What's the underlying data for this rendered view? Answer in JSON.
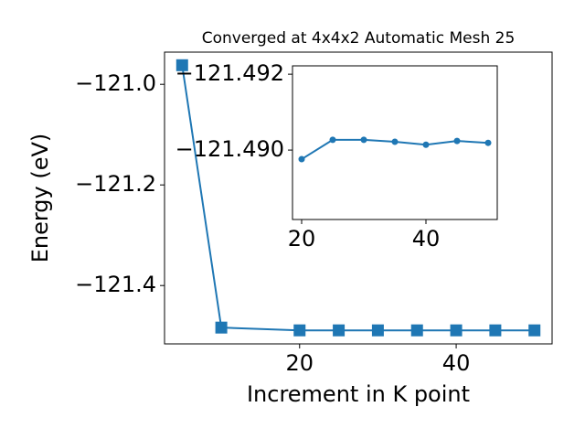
{
  "chart_data": [
    {
      "type": "line",
      "title": "Converged at 4x4x2 Automatic Mesh 25",
      "xlabel": "Increment in K point",
      "ylabel": "Energy (eV)",
      "x": [
        5,
        10,
        20,
        25,
        30,
        35,
        40,
        45,
        50
      ],
      "series": [
        {
          "color": "#1f77b4",
          "marker": "square",
          "values": [
            -120.962,
            -121.4836,
            -121.4891,
            -121.4891,
            -121.4891,
            -121.4891,
            -121.4891,
            -121.4891,
            -121.4891
          ]
        }
      ],
      "xlim": [
        2.75,
        52.25
      ],
      "ylim": [
        -121.516,
        -120.936
      ],
      "xticks": [
        20,
        40
      ],
      "yticks": [
        {
          "value": -121.0,
          "label": "−121.0"
        },
        {
          "value": -121.2,
          "label": "−121.2"
        },
        {
          "value": -121.4,
          "label": "−121.4"
        }
      ]
    },
    {
      "type": "line",
      "x": [
        20,
        25,
        30,
        35,
        40,
        45,
        50
      ],
      "series": [
        {
          "color": "#1f77b4",
          "marker": "circle",
          "values": [
            -121.48976,
            -121.49027,
            -121.49027,
            -121.49022,
            -121.49014,
            -121.49024,
            -121.49019
          ]
        }
      ],
      "xlim": [
        18.53,
        51.47
      ],
      "ylim": [
        -121.48817,
        -121.49222
      ],
      "xticks": [
        20,
        40
      ],
      "yticks": [
        {
          "value": -121.492,
          "label": "−121.492"
        },
        {
          "value": -121.49,
          "label": "−121.490"
        }
      ]
    }
  ]
}
